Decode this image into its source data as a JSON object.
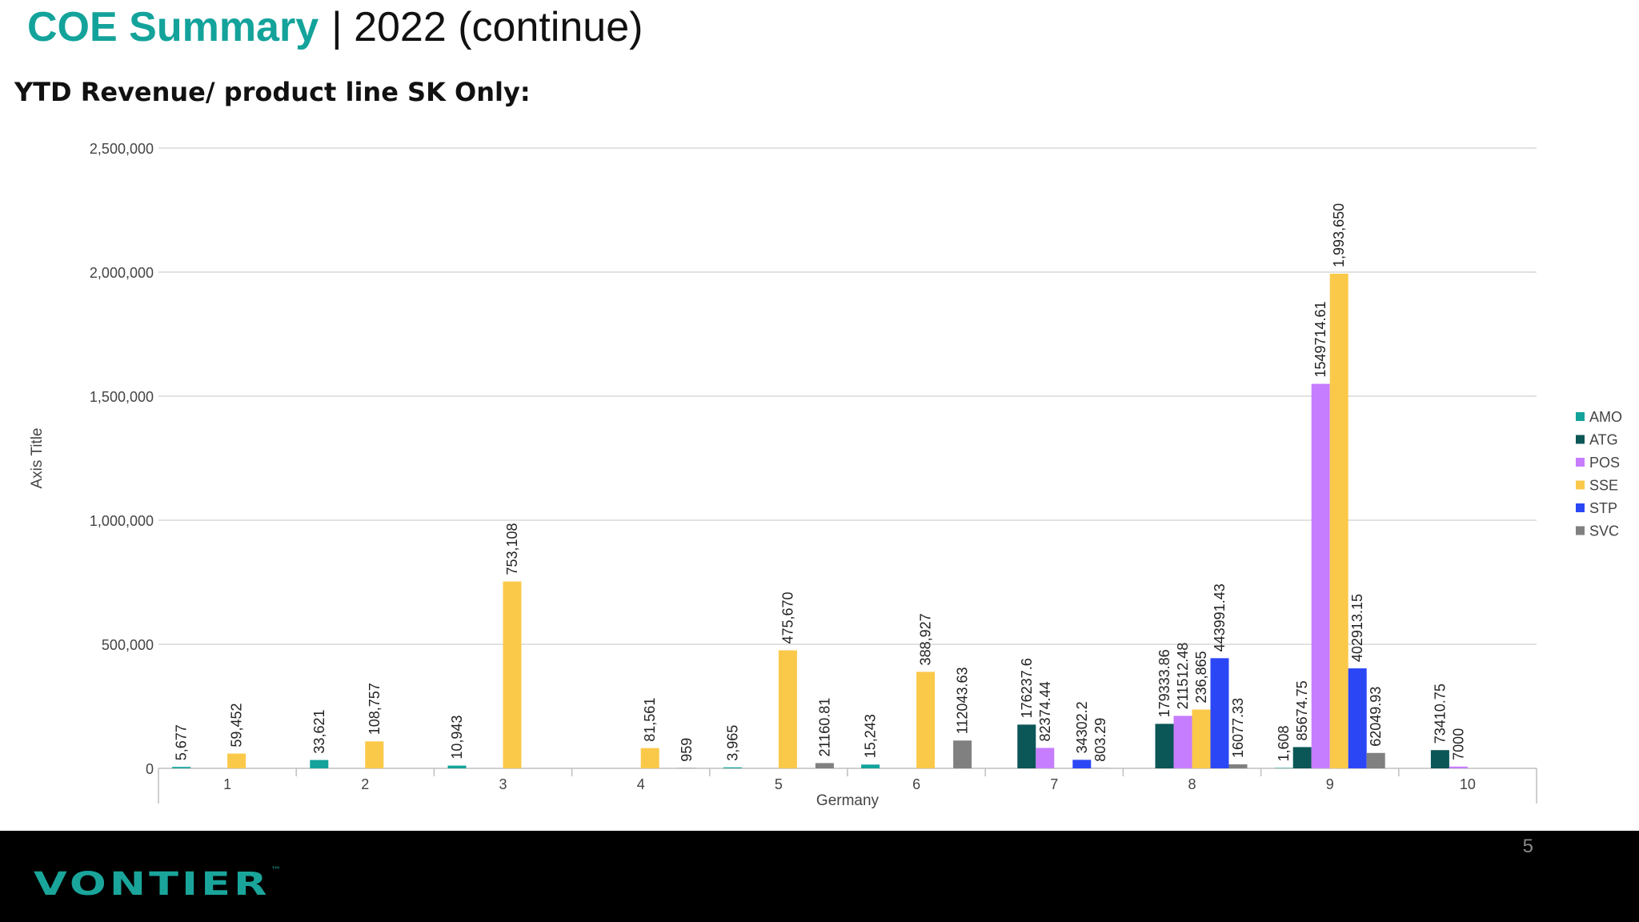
{
  "header": {
    "title_main": "COE Summary",
    "title_rest": "| 2022 (continue)",
    "subtitle": "YTD Revenue/ product line SK Only:"
  },
  "footer": {
    "logo": "VONTIER",
    "trademark": "™",
    "page_number": "5"
  },
  "chart_data": {
    "type": "bar",
    "xlabel": "Germany",
    "ylabel": "Axis Title",
    "ylim": [
      0,
      2500000
    ],
    "yticks": [
      0,
      500000,
      1000000,
      1500000,
      2000000,
      2500000
    ],
    "ytick_labels": [
      "0",
      "500,000",
      "1,000,000",
      "1,500,000",
      "2,000,000",
      "2,500,000"
    ],
    "categories": [
      "1",
      "2",
      "3",
      "4",
      "5",
      "6",
      "7",
      "8",
      "9",
      "10"
    ],
    "grid": true,
    "legend_position": "right",
    "series": [
      {
        "name": "AMO",
        "color": "#13a39b",
        "values": [
          5677,
          33621,
          10943,
          null,
          3965,
          15243,
          null,
          null,
          1608,
          null
        ],
        "labels": [
          "5,677",
          "33,621",
          "10,943",
          "",
          "3,965",
          "15,243",
          "",
          "",
          "1,608",
          ""
        ]
      },
      {
        "name": "ATG",
        "color": "#0b5656",
        "values": [
          null,
          null,
          null,
          null,
          null,
          null,
          176237.6,
          179333.86,
          85674.75,
          73410.75
        ],
        "labels": [
          "",
          "",
          "",
          "",
          "",
          "",
          "176237.6",
          "179333.86",
          "85674.75",
          "73410.75"
        ]
      },
      {
        "name": "POS",
        "color": "#c77dff",
        "values": [
          null,
          null,
          null,
          null,
          null,
          null,
          82374.44,
          211512.48,
          1549714.61,
          7000
        ],
        "labels": [
          "",
          "",
          "",
          "",
          "",
          "",
          "82374.44",
          "211512.48",
          "1549714.61",
          "7000"
        ]
      },
      {
        "name": "SSE",
        "color": "#fbc94a",
        "values": [
          59452,
          108757,
          753108,
          81561,
          475670,
          388927,
          null,
          236865,
          1993650,
          null
        ],
        "labels": [
          "59,452",
          "108,757",
          "753,108",
          "81,561",
          "475,670",
          "388,927",
          "",
          "236,865",
          "1,993,650",
          ""
        ]
      },
      {
        "name": "STP",
        "color": "#2b47f5",
        "values": [
          null,
          null,
          null,
          null,
          null,
          null,
          34302.2,
          443991.43,
          402913.15,
          null
        ],
        "labels": [
          "",
          "",
          "",
          "",
          "",
          "",
          "34302.2",
          "443991.43",
          "402913.15",
          ""
        ]
      },
      {
        "name": "SVC",
        "color": "#808080",
        "values": [
          null,
          null,
          null,
          959,
          21160.81,
          112043.63,
          803.29,
          16077.33,
          62049.93,
          null
        ],
        "labels": [
          "",
          "",
          "",
          "959",
          "21160.81",
          "112043.63",
          "803.29",
          "16077.33",
          "62049.93",
          ""
        ]
      }
    ]
  }
}
